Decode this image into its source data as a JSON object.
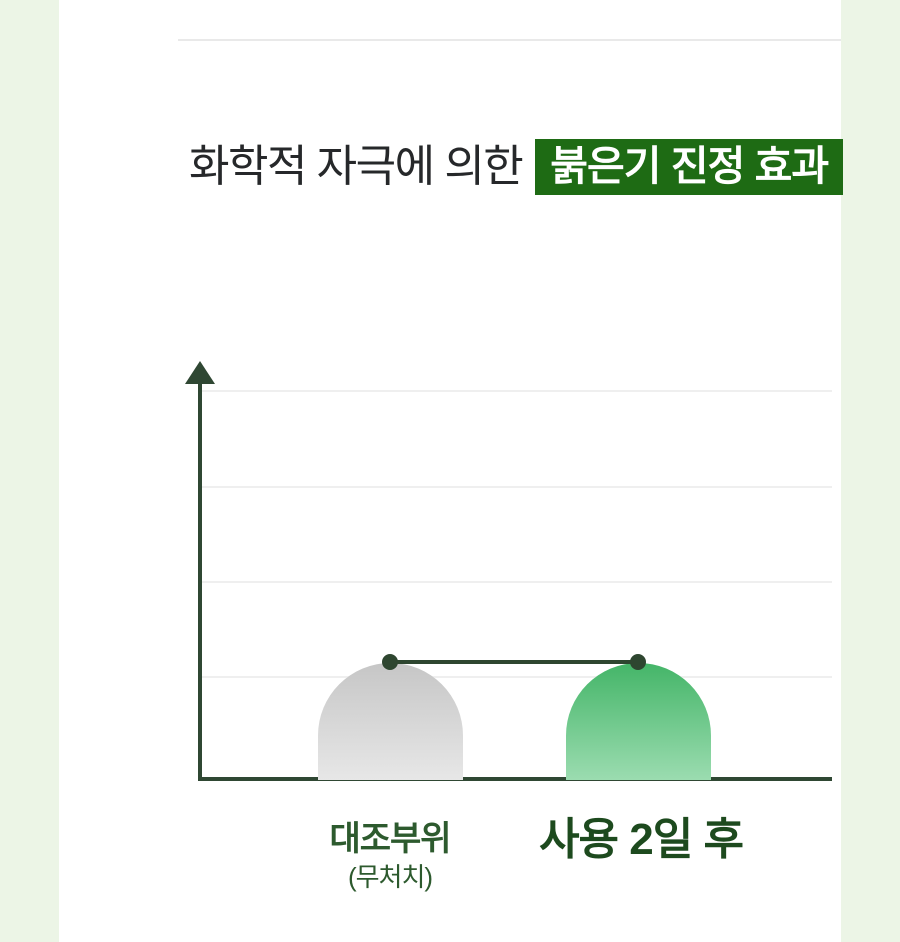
{
  "header": {
    "title_prefix": "화학적 자극에 의한",
    "title_highlight": "붉은기 진정 효과"
  },
  "labels": {
    "bar1_main": "대조부위",
    "bar1_sub": "(무처치)",
    "bar2_main": "사용 2일 후"
  },
  "chart_data": {
    "type": "bar",
    "title": "화학적 자극에 의한 붉은기 진정 효과",
    "categories": [
      "대조부위 (무처치)",
      "사용 2일 후"
    ],
    "values": [
      1.22,
      1.22
    ],
    "value_note": "축에 수치 레이블 없음 — 값은 가로 눈금선 간격 단위의 상대 높이, 두 막대 높이 동일",
    "xlabel": "",
    "ylabel": "",
    "ylim": [
      0,
      4.35
    ],
    "gridline_count": 4,
    "grid": "horizontal only",
    "legend": null,
    "series": [
      {
        "name": "대조부위(무처치)",
        "color_top": "#c6c6c6",
        "color_bottom": "#e7e7e7"
      },
      {
        "name": "사용 2일 후",
        "color_top": "#44b568",
        "color_bottom": "#9bdcb0"
      }
    ],
    "annotation": "두 막대 꼭대기에 점 마커가 있고 수평 연결선이 두 점을 잇는다 (같은 수준임을 표시)",
    "axis_style": "진녹색 세로축(위쪽 화살표)과 가로 기준선"
  },
  "colors": {
    "page_margin_green": "#ecf5e6",
    "divider_gray": "#e9e9e9",
    "title_text": "#26282a",
    "badge_green": "#1e6b14",
    "badge_text": "#ffffff",
    "axis_dark_green": "#2f4733",
    "marker_dark_green": "#2e4630",
    "gridline_gray": "#efefef",
    "label_green": "#2d5a2e",
    "label_green_bold": "#1d4a1e",
    "bar_gray_top": "#c6c6c6",
    "bar_gray_bottom": "#e7e7e7",
    "bar_green_top": "#44b568",
    "bar_green_bottom": "#9bdcb0"
  }
}
